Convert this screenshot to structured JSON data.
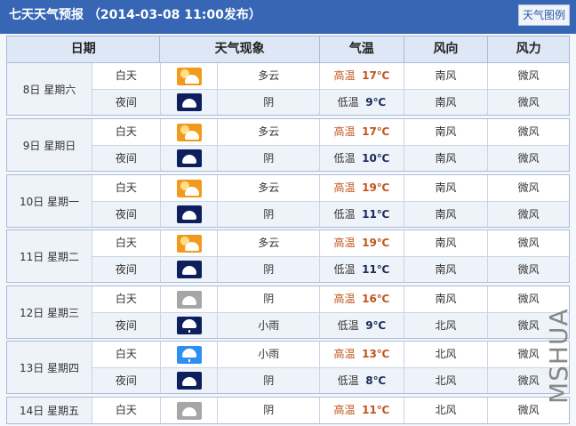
{
  "header": {
    "title": "七天天气预报 （2014-03-08 11:00发布）",
    "legend_button": "天气图例",
    "color": "#3766b5"
  },
  "columns": [
    "日期",
    "天气现象",
    "气温",
    "风向",
    "风力"
  ],
  "icon_colors": {
    "partly-cloudy-day": "#f39a1e",
    "overcast-night": "#0d1f5c",
    "overcast-day": "#a6a6a6",
    "light-rain-night": "#0d1f5c",
    "light-rain-day": "#2f8ff0"
  },
  "days": [
    {
      "date": "8日 星期六",
      "periods": [
        {
          "period": "白天",
          "icon": "partly-cloudy-day",
          "weather": "多云",
          "temp_label": "高温",
          "temp": "17℃",
          "wind_dir": "南风",
          "wind_force": "微风"
        },
        {
          "period": "夜间",
          "icon": "overcast-night",
          "weather": "阴",
          "temp_label": "低温",
          "temp": "9℃",
          "wind_dir": "南风",
          "wind_force": "微风"
        }
      ]
    },
    {
      "date": "9日 星期日",
      "periods": [
        {
          "period": "白天",
          "icon": "partly-cloudy-day",
          "weather": "多云",
          "temp_label": "高温",
          "temp": "17℃",
          "wind_dir": "南风",
          "wind_force": "微风"
        },
        {
          "period": "夜间",
          "icon": "overcast-night",
          "weather": "阴",
          "temp_label": "低温",
          "temp": "10℃",
          "wind_dir": "南风",
          "wind_force": "微风"
        }
      ]
    },
    {
      "date": "10日 星期一",
      "periods": [
        {
          "period": "白天",
          "icon": "partly-cloudy-day",
          "weather": "多云",
          "temp_label": "高温",
          "temp": "19℃",
          "wind_dir": "南风",
          "wind_force": "微风"
        },
        {
          "period": "夜间",
          "icon": "overcast-night",
          "weather": "阴",
          "temp_label": "低温",
          "temp": "11℃",
          "wind_dir": "南风",
          "wind_force": "微风"
        }
      ]
    },
    {
      "date": "11日 星期二",
      "periods": [
        {
          "period": "白天",
          "icon": "partly-cloudy-day",
          "weather": "多云",
          "temp_label": "高温",
          "temp": "19℃",
          "wind_dir": "南风",
          "wind_force": "微风"
        },
        {
          "period": "夜间",
          "icon": "overcast-night",
          "weather": "阴",
          "temp_label": "低温",
          "temp": "11℃",
          "wind_dir": "南风",
          "wind_force": "微风"
        }
      ]
    },
    {
      "date": "12日 星期三",
      "periods": [
        {
          "period": "白天",
          "icon": "overcast-day",
          "weather": "阴",
          "temp_label": "高温",
          "temp": "16℃",
          "wind_dir": "南风",
          "wind_force": "微风"
        },
        {
          "period": "夜间",
          "icon": "light-rain-night",
          "weather": "小雨",
          "temp_label": "低温",
          "temp": "9℃",
          "wind_dir": "北风",
          "wind_force": "微风"
        }
      ]
    },
    {
      "date": "13日 星期四",
      "periods": [
        {
          "period": "白天",
          "icon": "light-rain-day",
          "weather": "小雨",
          "temp_label": "高温",
          "temp": "13℃",
          "wind_dir": "北风",
          "wind_force": "微风"
        },
        {
          "period": "夜间",
          "icon": "overcast-night",
          "weather": "阴",
          "temp_label": "低温",
          "temp": "8℃",
          "wind_dir": "北风",
          "wind_force": "微风"
        }
      ]
    },
    {
      "date": "14日 星期五",
      "periods": [
        {
          "period": "白天",
          "icon": "overcast-day",
          "weather": "阴",
          "temp_label": "高温",
          "temp": "11℃",
          "wind_dir": "北风",
          "wind_force": "微风"
        }
      ]
    }
  ],
  "watermark": "MSHUA"
}
